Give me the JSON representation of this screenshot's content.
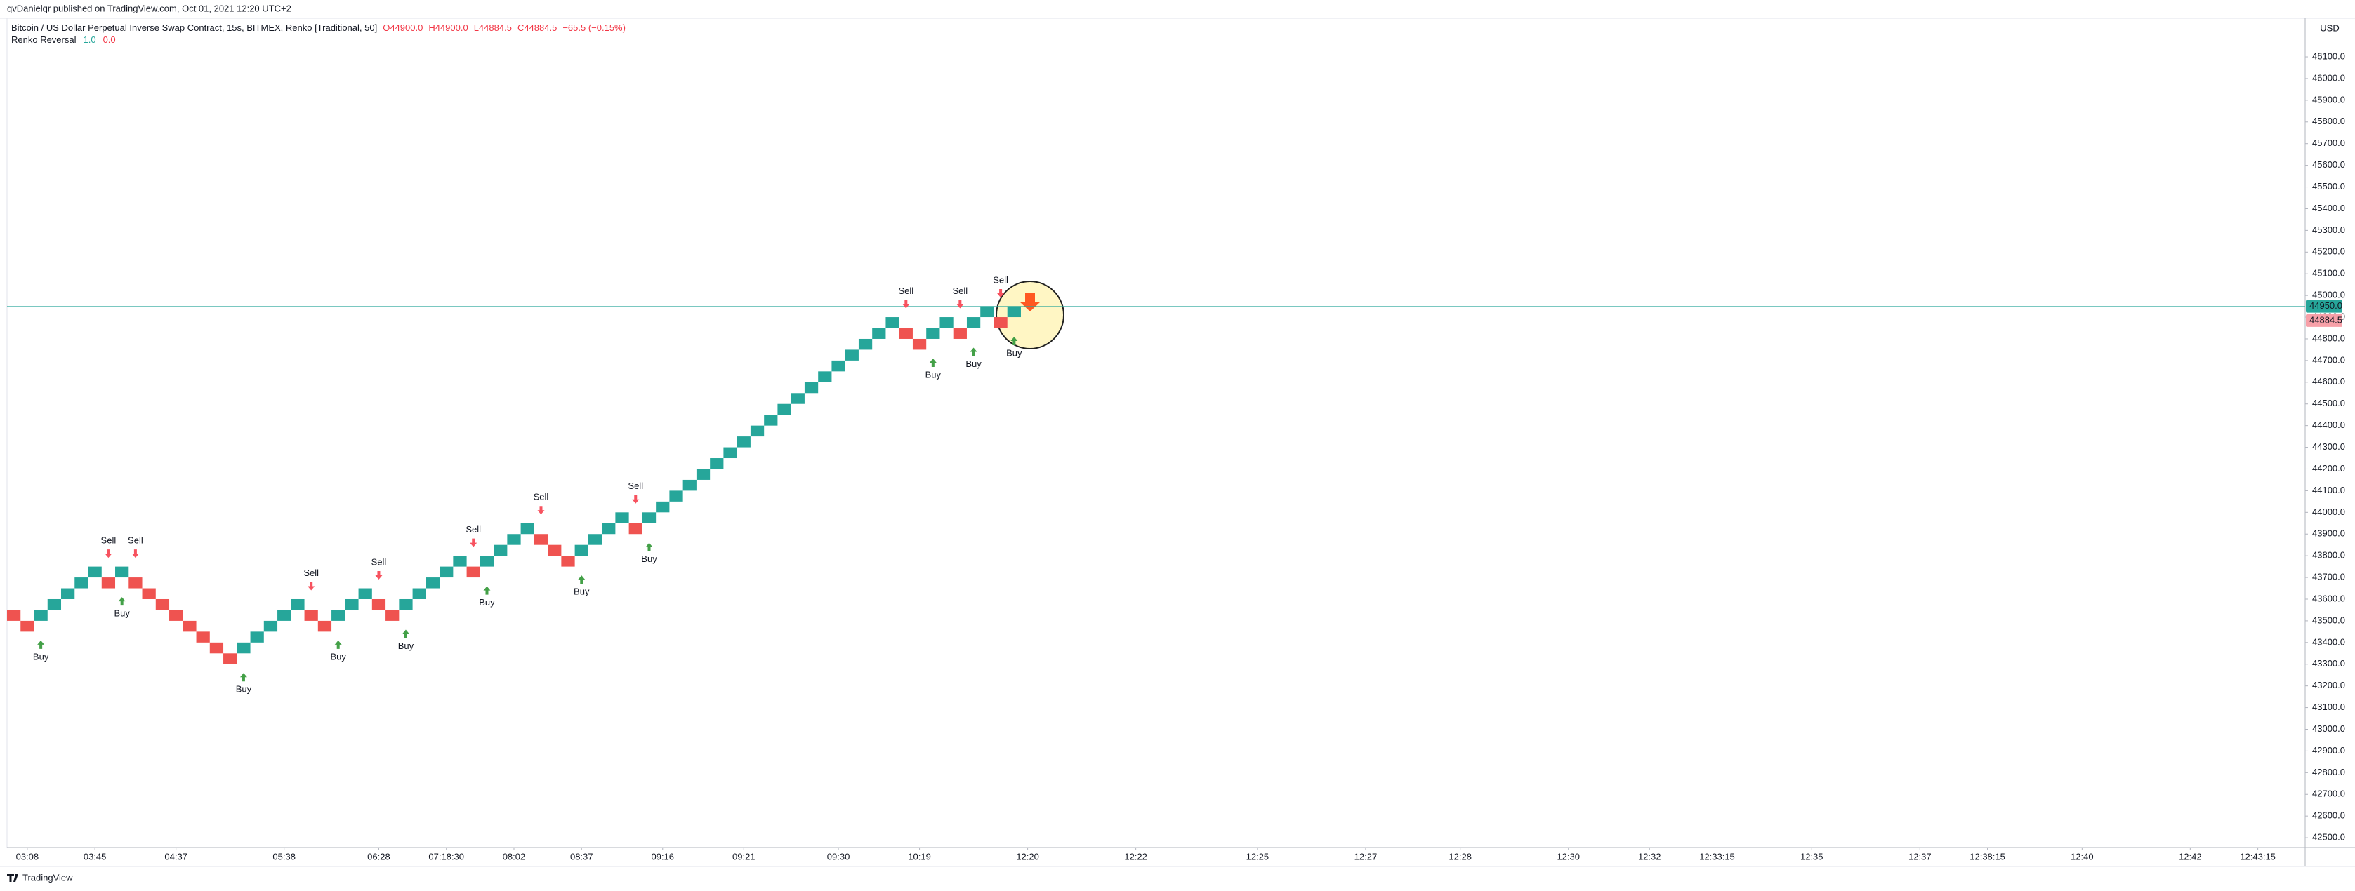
{
  "header": {
    "publisher": "qvDanielqr published on TradingView.com, Oct 01, 2021 12:20 UTC+2",
    "footer": "TradingView"
  },
  "chart_data": {
    "type": "renko",
    "symbol": "Bitcoin / US Dollar Perpetual Inverse Swap Contract, 15s, BITMEX, Renko [Traditional, 50]",
    "ohlc": [
      "O44900.0",
      "H44900.0",
      "L44884.5",
      "C44884.5",
      "−65.5 (−0.15%)"
    ],
    "indicator": {
      "name": "Renko Reversal",
      "values": [
        "1.0",
        "0.0"
      ]
    },
    "currency": "USD",
    "up_color": "#26a69a",
    "down_color": "#ef5350",
    "buy_color": "#43a047",
    "sell_color": "#f7525f",
    "open": [
      43550,
      43500,
      43500,
      43550,
      43600,
      43650,
      43700,
      43700,
      43700,
      43700,
      43650,
      43600,
      43550,
      43500,
      43450,
      43400,
      43350,
      43350,
      43400,
      43450,
      43500,
      43550,
      43550,
      43500,
      43500,
      43550,
      43600,
      43600,
      43550,
      43550,
      43600,
      43650,
      43700,
      43750,
      43750,
      43750,
      43800,
      43850,
      43900,
      43900,
      43850,
      43800,
      43800,
      43850,
      43900,
      43950,
      43950,
      43950,
      44000,
      44050,
      44100,
      44150,
      44200,
      44250,
      44300,
      44350,
      44400,
      44450,
      44500,
      44550,
      44600,
      44650,
      44700,
      44750,
      44800,
      44850,
      44850,
      44800,
      44800,
      44850,
      44850,
      44850,
      44900,
      44900,
      44900
    ],
    "close": [
      43500,
      43450,
      43550,
      43600,
      43650,
      43700,
      43750,
      43650,
      43750,
      43650,
      43600,
      43550,
      43500,
      43450,
      43400,
      43350,
      43300,
      43400,
      43450,
      43500,
      43550,
      43600,
      43500,
      43450,
      43550,
      43600,
      43650,
      43550,
      43500,
      43600,
      43650,
      43700,
      43750,
      43800,
      43700,
      43800,
      43850,
      43900,
      43950,
      43850,
      43800,
      43750,
      43850,
      43900,
      43950,
      44000,
      43900,
      44000,
      44050,
      44100,
      44150,
      44200,
      44250,
      44300,
      44350,
      44400,
      44450,
      44500,
      44550,
      44600,
      44650,
      44700,
      44750,
      44800,
      44850,
      44900,
      44800,
      44750,
      44850,
      44900,
      44800,
      44900,
      44950,
      44850,
      44950
    ],
    "signals": [
      {
        "index": 2,
        "label": "Buy"
      },
      {
        "index": 7,
        "label": "Sell"
      },
      {
        "index": 8,
        "label": "Buy"
      },
      {
        "index": 9,
        "label": "Sell"
      },
      {
        "index": 17,
        "label": "Buy"
      },
      {
        "index": 22,
        "label": "Sell"
      },
      {
        "index": 24,
        "label": "Buy"
      },
      {
        "index": 27,
        "label": "Sell"
      },
      {
        "index": 29,
        "label": "Buy"
      },
      {
        "index": 34,
        "label": "Sell"
      },
      {
        "index": 35,
        "label": "Buy"
      },
      {
        "index": 39,
        "label": "Sell"
      },
      {
        "index": 42,
        "label": "Buy"
      },
      {
        "index": 46,
        "label": "Sell"
      },
      {
        "index": 47,
        "label": "Buy"
      },
      {
        "index": 66,
        "label": "Sell"
      },
      {
        "index": 68,
        "label": "Buy"
      },
      {
        "index": 70,
        "label": "Sell"
      },
      {
        "index": 71,
        "label": "Buy"
      },
      {
        "index": 73,
        "label": "Sell"
      },
      {
        "index": 74,
        "label": "Buy"
      }
    ],
    "last_price": {
      "value": 44950,
      "label": "44950.0"
    },
    "close_price": {
      "value": 44884.5,
      "label": "44884.5"
    },
    "xlim": [
      -0.5,
      169.5
    ],
    "ylim": [
      42455,
      46278
    ],
    "xticks": [
      {
        "value": 1,
        "label": "03:08"
      },
      {
        "value": 6,
        "label": "03:45"
      },
      {
        "value": 12,
        "label": "04:37"
      },
      {
        "value": 20,
        "label": "05:38"
      },
      {
        "value": 27,
        "label": "06:28"
      },
      {
        "value": 32,
        "label": "07:18:30"
      },
      {
        "value": 37,
        "label": "08:02"
      },
      {
        "value": 42,
        "label": "08:37"
      },
      {
        "value": 48,
        "label": "09:16"
      },
      {
        "value": 54,
        "label": "09:21"
      },
      {
        "value": 61,
        "label": "09:30"
      },
      {
        "value": 67,
        "label": "10:19"
      },
      {
        "value": 75,
        "label": "12:20"
      },
      {
        "value": 83,
        "label": "12:22"
      },
      {
        "value": 92,
        "label": "12:25"
      },
      {
        "value": 100,
        "label": "12:27"
      },
      {
        "value": 107,
        "label": "12:28"
      },
      {
        "value": 115,
        "label": "12:30"
      },
      {
        "value": 121,
        "label": "12:32"
      },
      {
        "value": 126,
        "label": "12:33:15"
      },
      {
        "value": 133,
        "label": "12:35"
      },
      {
        "value": 141,
        "label": "12:37"
      },
      {
        "value": 146,
        "label": "12:38:15"
      },
      {
        "value": 153,
        "label": "12:40"
      },
      {
        "value": 161,
        "label": "12:42"
      },
      {
        "value": 166,
        "label": "12:43:15"
      }
    ],
    "yticks": [
      {
        "value": 42500,
        "label": "42500.0"
      },
      {
        "value": 42600,
        "label": "42600.0"
      },
      {
        "value": 42700,
        "label": "42700.0"
      },
      {
        "value": 42800,
        "label": "42800.0"
      },
      {
        "value": 42900,
        "label": "42900.0"
      },
      {
        "value": 43000,
        "label": "43000.0"
      },
      {
        "value": 43100,
        "label": "43100.0"
      },
      {
        "value": 43200,
        "label": "43200.0"
      },
      {
        "value": 43300,
        "label": "43300.0"
      },
      {
        "value": 43400,
        "label": "43400.0"
      },
      {
        "value": 43500,
        "label": "43500.0"
      },
      {
        "value": 43600,
        "label": "43600.0"
      },
      {
        "value": 43700,
        "label": "43700.0"
      },
      {
        "value": 43800,
        "label": "43800.0"
      },
      {
        "value": 43900,
        "label": "43900.0"
      },
      {
        "value": 44000,
        "label": "44000.0"
      },
      {
        "value": 44100,
        "label": "44100.0"
      },
      {
        "value": 44200,
        "label": "44200.0"
      },
      {
        "value": 44300,
        "label": "44300.0"
      },
      {
        "value": 44400,
        "label": "44400.0"
      },
      {
        "value": 44500,
        "label": "44500.0"
      },
      {
        "value": 44600,
        "label": "44600.0"
      },
      {
        "value": 44700,
        "label": "44700.0"
      },
      {
        "value": 44800,
        "label": "44800.0"
      },
      {
        "value": 44900,
        "label": "44900.0"
      },
      {
        "value": 45000,
        "label": "45000.0"
      },
      {
        "value": 45100,
        "label": "45100.0"
      },
      {
        "value": 45200,
        "label": "45200.0"
      },
      {
        "value": 45300,
        "label": "45300.0"
      },
      {
        "value": 45400,
        "label": "45400.0"
      },
      {
        "value": 45500,
        "label": "45500.0"
      },
      {
        "value": 45600,
        "label": "45600.0"
      },
      {
        "value": 45700,
        "label": "45700.0"
      },
      {
        "value": 45800,
        "label": "45800.0"
      },
      {
        "value": 45900,
        "label": "45900.0"
      },
      {
        "value": 46000,
        "label": "46000.0"
      },
      {
        "value": 46100,
        "label": "46100.0"
      }
    ]
  }
}
